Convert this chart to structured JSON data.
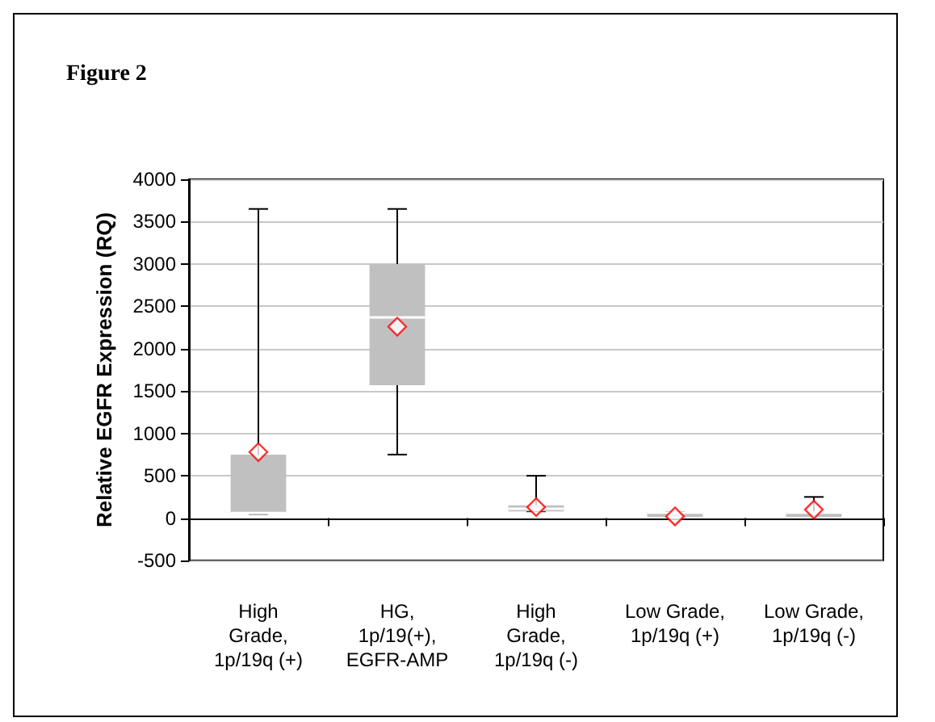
{
  "chart_data": {
    "type": "box",
    "title": "Figure 2",
    "ylabel": "Relative EGFR Expression (RQ)",
    "categories": [
      "High Grade, 1p/19q (+)",
      "HG, 1p/19(+), EGFR-AMP",
      "High Grade, 1p/19q (-)",
      "Low Grade, 1p/19q (+)",
      "Low Grade, 1p/19q (-)"
    ],
    "boxes": [
      {
        "low": 50,
        "q1": 50,
        "median": 60,
        "q3": 750,
        "high": 3650,
        "mean": 780
      },
      {
        "low": 750,
        "q1": 1570,
        "median": 2370,
        "q3": 3000,
        "high": 3650,
        "mean": 2260
      },
      {
        "low": 80,
        "q1": 80,
        "median": 110,
        "q3": 150,
        "high": 500,
        "mean": 130
      },
      {
        "low": 60,
        "q1": 60,
        "median": 65,
        "q3": 70,
        "high": 70,
        "mean": 20
      },
      {
        "low": 60,
        "q1": 60,
        "median": 65,
        "q3": 70,
        "high": 250,
        "mean": 100
      }
    ],
    "color": "#c0c0c0",
    "marker": "diamond",
    "ylim": [
      -500,
      4000
    ],
    "yticks": [
      -500,
      0,
      500,
      1000,
      1500,
      2000,
      2500,
      3000,
      3500,
      4000
    ],
    "grid": "y"
  }
}
